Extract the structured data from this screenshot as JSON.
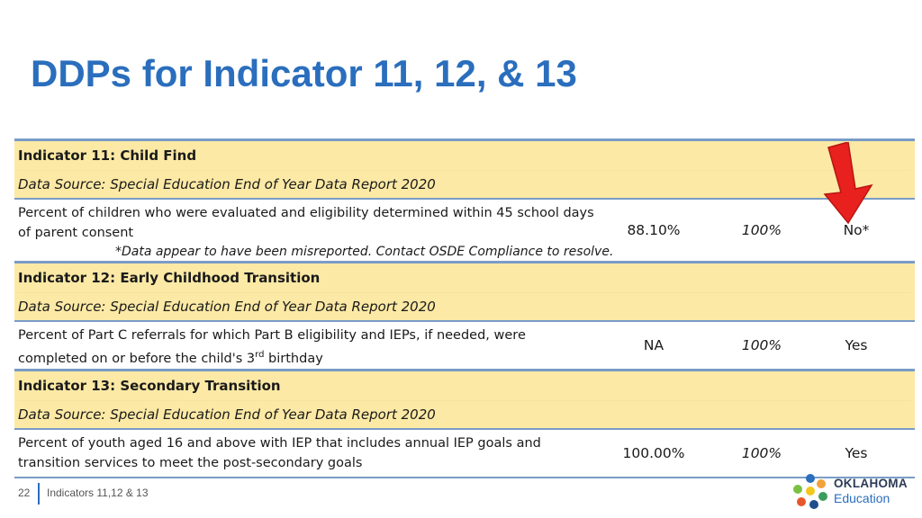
{
  "title": "DDPs for Indicator 11, 12, & 13",
  "indicators": [
    {
      "heading": "Indicator 11:  Child Find",
      "source": "Data Source:  Special Education End of Year Data Report 2020",
      "description": "Percent of children who were evaluated and eligibility determined within 45 school days of parent consent",
      "note": "*Data appear to have been misreported. Contact OSDE Compliance to resolve.",
      "value": "88.10%",
      "target": "100%",
      "met": "No*"
    },
    {
      "heading": "Indicator 12: Early Childhood Transition",
      "source": "Data Source:  Special Education End of Year Data Report 2020",
      "description_pre": "Percent of Part C referrals for which Part B eligibility and IEPs, if needed, were completed on or before the child's 3",
      "description_sup": "rd",
      "description_post": " birthday",
      "value": "NA",
      "target": "100%",
      "met": "Yes"
    },
    {
      "heading": "Indicator 13:  Secondary Transition",
      "source": "Data Source:  Special Education End of Year Data Report 2020",
      "description": "Percent of youth aged 16 and above with IEP that includes annual IEP goals and transition services to meet the post-secondary goals",
      "value": "100.00%",
      "target": "100%",
      "met": "Yes"
    }
  ],
  "footer": {
    "page_number": "22",
    "label": "Indicators 11,12 & 13"
  },
  "logo": {
    "line1": "OKLAHOMA",
    "line2": "Education"
  },
  "colors": {
    "title": "#2a6ebd",
    "header_fill": "#fce9a5",
    "rule": "#7a9cc6",
    "arrow": "#e8201e"
  },
  "icons": [
    "red-arrow-icon",
    "oklahoma-education-logo-icon"
  ]
}
